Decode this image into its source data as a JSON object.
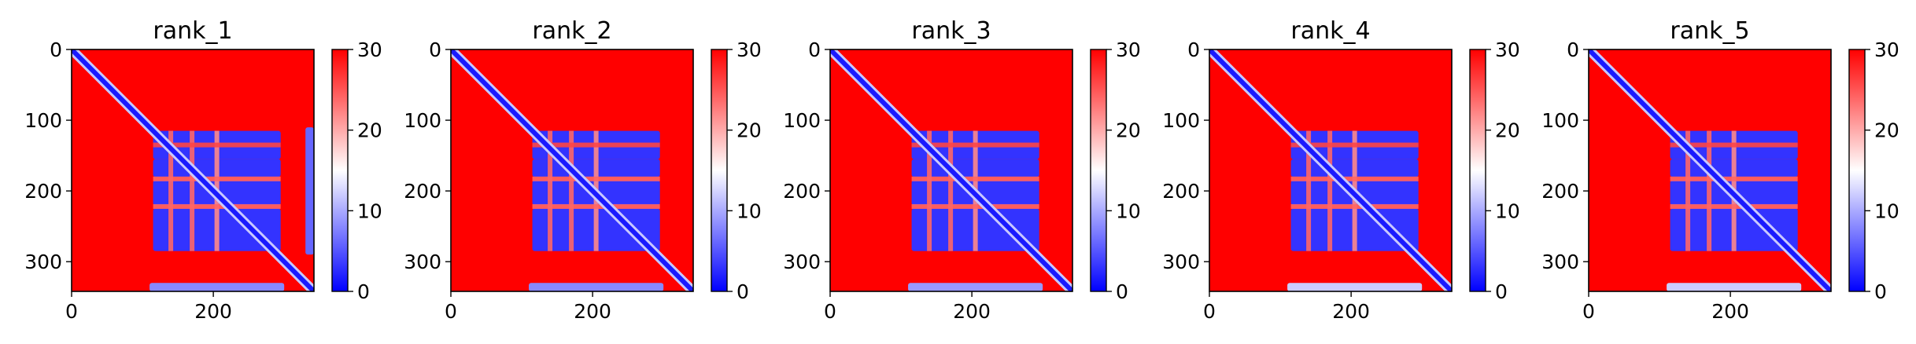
{
  "chart_data": [
    {
      "type": "heatmap",
      "title": "rank_1",
      "xlim": [
        0,
        342
      ],
      "ylim": [
        342,
        0
      ],
      "xticks": [
        0,
        200
      ],
      "yticks": [
        0,
        100,
        200,
        300
      ],
      "colorbar": {
        "min": 0,
        "max": 30,
        "ticks": [
          0,
          10,
          20,
          30
        ],
        "colormap": "bwr"
      },
      "diagonal_band": {
        "from": 0,
        "to": 342,
        "value": 1.5
      },
      "blocks": [
        {
          "x": [
            115,
            295
          ],
          "y": [
            115,
            155
          ],
          "value": 3
        },
        {
          "x": [
            115,
            295
          ],
          "y": [
            155,
            180
          ],
          "value": 3
        },
        {
          "x": [
            115,
            295
          ],
          "y": [
            185,
            220
          ],
          "value": 3
        },
        {
          "x": [
            115,
            295
          ],
          "y": [
            225,
            285
          ],
          "value": 3
        },
        {
          "x": [
            330,
            342
          ],
          "y": [
            110,
            290
          ],
          "value": 6
        },
        {
          "x": [
            110,
            300
          ],
          "y": [
            330,
            342
          ],
          "value": 8
        }
      ],
      "gaps": [
        {
          "axis": "x",
          "at": 140,
          "value": 24
        },
        {
          "axis": "x",
          "at": 170,
          "value": 24
        },
        {
          "axis": "x",
          "at": 205,
          "value": 22
        },
        {
          "axis": "y",
          "at": 135,
          "value": 26
        },
        {
          "axis": "y",
          "at": 183,
          "value": 24
        },
        {
          "axis": "y",
          "at": 222,
          "value": 24
        }
      ]
    },
    {
      "type": "heatmap",
      "title": "rank_2",
      "xlim": [
        0,
        342
      ],
      "ylim": [
        342,
        0
      ],
      "xticks": [
        0,
        200
      ],
      "yticks": [
        0,
        100,
        200,
        300
      ],
      "colorbar": {
        "min": 0,
        "max": 30,
        "ticks": [
          0,
          10,
          20,
          30
        ],
        "colormap": "bwr"
      },
      "diagonal_band": {
        "from": 0,
        "to": 342,
        "value": 1.5
      },
      "blocks": [
        {
          "x": [
            115,
            295
          ],
          "y": [
            115,
            155
          ],
          "value": 3
        },
        {
          "x": [
            115,
            295
          ],
          "y": [
            155,
            180
          ],
          "value": 3
        },
        {
          "x": [
            115,
            295
          ],
          "y": [
            185,
            220
          ],
          "value": 3
        },
        {
          "x": [
            115,
            295
          ],
          "y": [
            225,
            285
          ],
          "value": 3
        },
        {
          "x": [
            110,
            300
          ],
          "y": [
            330,
            342
          ],
          "value": 8
        }
      ],
      "gaps": [
        {
          "axis": "x",
          "at": 140,
          "value": 24
        },
        {
          "axis": "x",
          "at": 170,
          "value": 24
        },
        {
          "axis": "x",
          "at": 205,
          "value": 22
        },
        {
          "axis": "y",
          "at": 135,
          "value": 26
        },
        {
          "axis": "y",
          "at": 183,
          "value": 24
        },
        {
          "axis": "y",
          "at": 222,
          "value": 24
        }
      ]
    },
    {
      "type": "heatmap",
      "title": "rank_3",
      "xlim": [
        0,
        342
      ],
      "ylim": [
        342,
        0
      ],
      "xticks": [
        0,
        200
      ],
      "yticks": [
        0,
        100,
        200,
        300
      ],
      "colorbar": {
        "min": 0,
        "max": 30,
        "ticks": [
          0,
          10,
          20,
          30
        ],
        "colormap": "bwr"
      },
      "diagonal_band": {
        "from": 0,
        "to": 342,
        "value": 1.5
      },
      "blocks": [
        {
          "x": [
            115,
            295
          ],
          "y": [
            115,
            155
          ],
          "value": 3
        },
        {
          "x": [
            115,
            295
          ],
          "y": [
            155,
            180
          ],
          "value": 3
        },
        {
          "x": [
            115,
            295
          ],
          "y": [
            185,
            220
          ],
          "value": 3
        },
        {
          "x": [
            115,
            295
          ],
          "y": [
            225,
            285
          ],
          "value": 3
        },
        {
          "x": [
            110,
            300
          ],
          "y": [
            330,
            342
          ],
          "value": 9
        }
      ],
      "gaps": [
        {
          "axis": "x",
          "at": 140,
          "value": 24
        },
        {
          "axis": "x",
          "at": 170,
          "value": 24
        },
        {
          "axis": "x",
          "at": 205,
          "value": 22
        },
        {
          "axis": "y",
          "at": 135,
          "value": 26
        },
        {
          "axis": "y",
          "at": 183,
          "value": 24
        },
        {
          "axis": "y",
          "at": 222,
          "value": 24
        }
      ]
    },
    {
      "type": "heatmap",
      "title": "rank_4",
      "xlim": [
        0,
        342
      ],
      "ylim": [
        342,
        0
      ],
      "xticks": [
        0,
        200
      ],
      "yticks": [
        0,
        100,
        200,
        300
      ],
      "colorbar": {
        "min": 0,
        "max": 30,
        "ticks": [
          0,
          10,
          20,
          30
        ],
        "colormap": "bwr"
      },
      "diagonal_band": {
        "from": 0,
        "to": 342,
        "value": 1.5
      },
      "blocks": [
        {
          "x": [
            115,
            295
          ],
          "y": [
            115,
            155
          ],
          "value": 3
        },
        {
          "x": [
            115,
            295
          ],
          "y": [
            155,
            180
          ],
          "value": 3
        },
        {
          "x": [
            115,
            295
          ],
          "y": [
            185,
            220
          ],
          "value": 3
        },
        {
          "x": [
            115,
            295
          ],
          "y": [
            225,
            285
          ],
          "value": 3
        },
        {
          "x": [
            110,
            300
          ],
          "y": [
            330,
            342
          ],
          "value": 12
        }
      ],
      "gaps": [
        {
          "axis": "x",
          "at": 140,
          "value": 24
        },
        {
          "axis": "x",
          "at": 170,
          "value": 24
        },
        {
          "axis": "x",
          "at": 205,
          "value": 22
        },
        {
          "axis": "y",
          "at": 135,
          "value": 26
        },
        {
          "axis": "y",
          "at": 183,
          "value": 24
        },
        {
          "axis": "y",
          "at": 222,
          "value": 24
        }
      ]
    },
    {
      "type": "heatmap",
      "title": "rank_5",
      "xlim": [
        0,
        342
      ],
      "ylim": [
        342,
        0
      ],
      "xticks": [
        0,
        200
      ],
      "yticks": [
        0,
        100,
        200,
        300
      ],
      "colorbar": {
        "min": 0,
        "max": 30,
        "ticks": [
          0,
          10,
          20,
          30
        ],
        "colormap": "bwr"
      },
      "diagonal_band": {
        "from": 0,
        "to": 342,
        "value": 1.5
      },
      "blocks": [
        {
          "x": [
            115,
            295
          ],
          "y": [
            115,
            155
          ],
          "value": 3
        },
        {
          "x": [
            115,
            295
          ],
          "y": [
            155,
            180
          ],
          "value": 3
        },
        {
          "x": [
            115,
            295
          ],
          "y": [
            185,
            220
          ],
          "value": 3
        },
        {
          "x": [
            115,
            295
          ],
          "y": [
            225,
            285
          ],
          "value": 3
        },
        {
          "x": [
            110,
            300
          ],
          "y": [
            330,
            342
          ],
          "value": 12
        }
      ],
      "gaps": [
        {
          "axis": "x",
          "at": 140,
          "value": 24
        },
        {
          "axis": "x",
          "at": 170,
          "value": 24
        },
        {
          "axis": "x",
          "at": 205,
          "value": 22
        },
        {
          "axis": "y",
          "at": 135,
          "value": 26
        },
        {
          "axis": "y",
          "at": 183,
          "value": 24
        },
        {
          "axis": "y",
          "at": 222,
          "value": 24
        }
      ]
    }
  ]
}
